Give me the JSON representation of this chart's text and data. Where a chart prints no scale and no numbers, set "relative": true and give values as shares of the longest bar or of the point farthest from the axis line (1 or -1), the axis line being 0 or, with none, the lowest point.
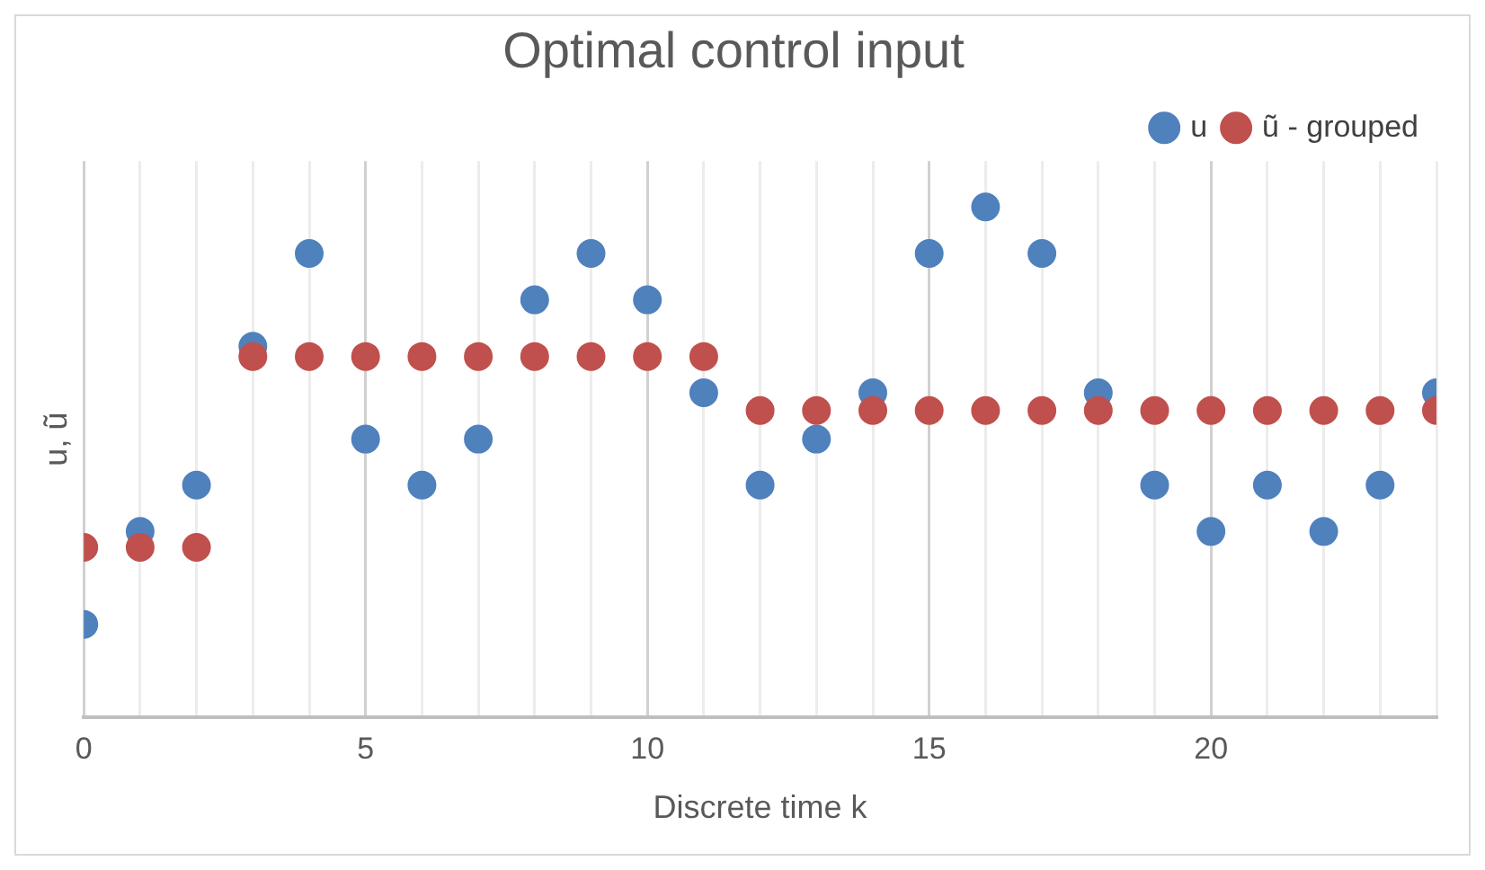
{
  "chart_data": {
    "type": "scatter",
    "title": "Optimal control input",
    "xlabel": "Discrete time k",
    "ylabel": "u, ũ",
    "x": [
      0,
      1,
      2,
      3,
      4,
      5,
      6,
      7,
      8,
      9,
      10,
      11,
      12,
      13,
      14,
      15,
      16,
      17,
      18,
      19,
      20,
      21,
      22,
      23,
      24
    ],
    "relative": true,
    "series": [
      {
        "name": "u",
        "color": "#4f81bd",
        "values": [
          0.182,
          0.364,
          0.455,
          0.727,
          0.909,
          0.545,
          0.455,
          0.545,
          0.818,
          0.909,
          0.818,
          0.636,
          0.455,
          0.545,
          0.636,
          0.909,
          1,
          0.909,
          0.636,
          0.455,
          0.364,
          0.455,
          0.364,
          0.455,
          0.636
        ]
      },
      {
        "name": "ũ - grouped",
        "color": "#c0504d",
        "values": [
          0.333,
          0.333,
          0.333,
          0.707,
          0.707,
          0.707,
          0.707,
          0.707,
          0.707,
          0.707,
          0.707,
          0.707,
          0.601,
          0.601,
          0.601,
          0.601,
          0.601,
          0.601,
          0.601,
          0.601,
          0.601,
          0.601,
          0.601,
          0.601,
          0.601
        ]
      }
    ],
    "xlim": [
      0,
      24
    ],
    "xticks": [
      0,
      {
        "value": 1,
        "label": null
      },
      {
        "value": 2,
        "label": null
      },
      {
        "value": 3,
        "label": null
      },
      {
        "value": 4,
        "label": null
      },
      5,
      {
        "value": 6,
        "label": null
      },
      {
        "value": 7,
        "label": null
      },
      {
        "value": 8,
        "label": null
      },
      {
        "value": 9,
        "label": null
      },
      10,
      {
        "value": 11,
        "label": null
      },
      {
        "value": 12,
        "label": null
      },
      {
        "value": 13,
        "label": null
      },
      {
        "value": 14,
        "label": null
      },
      15,
      {
        "value": 16,
        "label": null
      },
      {
        "value": 17,
        "label": null
      },
      {
        "value": 18,
        "label": null
      },
      {
        "value": 19,
        "label": null
      },
      20,
      {
        "value": 21,
        "label": null
      },
      {
        "value": 22,
        "label": null
      },
      {
        "value": 23,
        "label": null
      },
      {
        "value": 24,
        "label": null
      }
    ],
    "grid": "x",
    "legend": "top right",
    "marker": "circle"
  }
}
